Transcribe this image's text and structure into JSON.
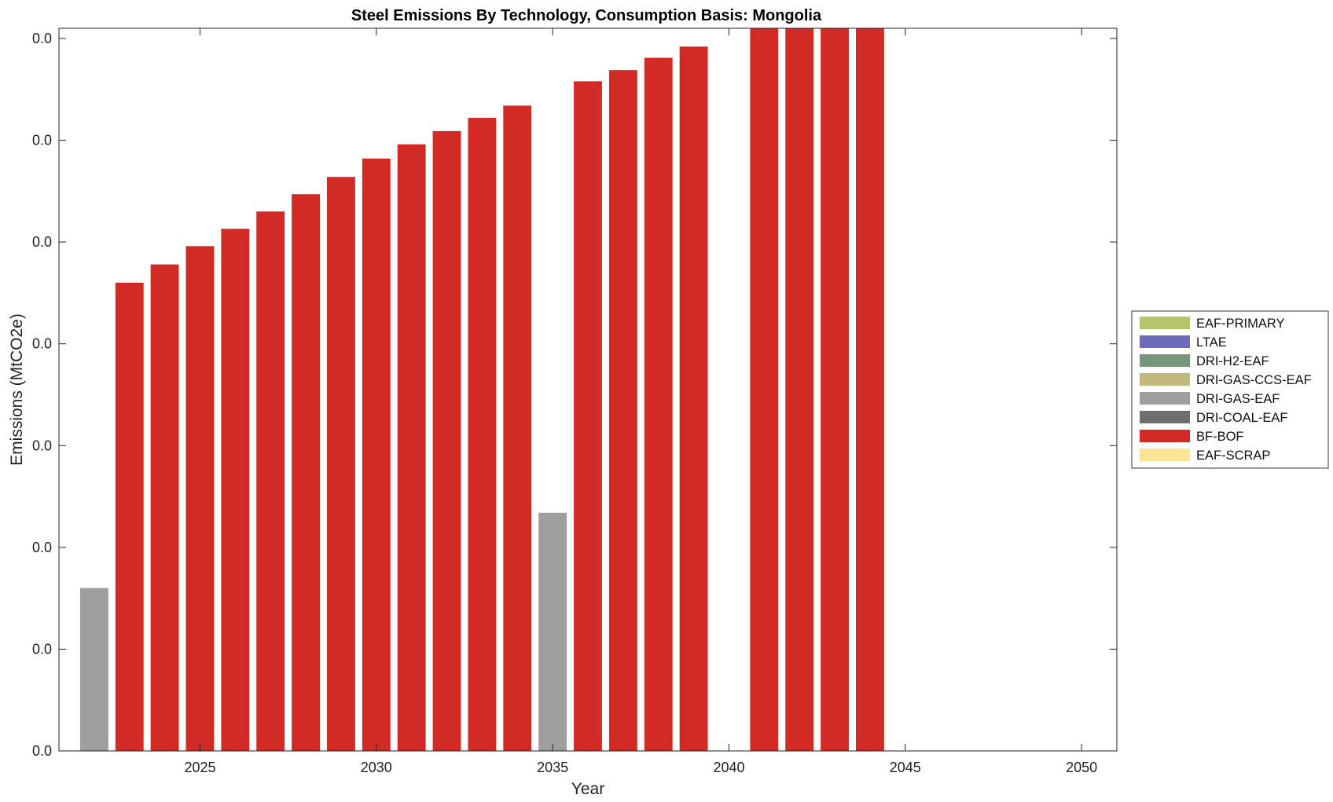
{
  "chart_data": {
    "type": "bar",
    "stacked": true,
    "title": "Steel Emissions By Technology, Consumption Basis: Mongolia",
    "xlabel": "Year",
    "ylabel": "Emissions (MtCO2e)",
    "xlim": [
      2021,
      2051
    ],
    "ylim": [
      0,
      0.0071
    ],
    "x_ticks": [
      2025,
      2030,
      2035,
      2040,
      2045,
      2050
    ],
    "y_ticks": [
      0,
      0.001,
      0.002,
      0.003,
      0.004,
      0.005,
      0.006,
      0.007
    ],
    "y_tick_labels": [
      "0.0",
      "0.0",
      "0.0",
      "0.0",
      "0.0",
      "0.0",
      "0.0",
      "0.0"
    ],
    "grid": false,
    "legend_position": "right",
    "legend": [
      {
        "name": "EAF-PRIMARY",
        "color": "#b8c46a"
      },
      {
        "name": "LTAE",
        "color": "#6e6bb8"
      },
      {
        "name": "DRI-H2-EAF",
        "color": "#76977a"
      },
      {
        "name": "DRI-GAS-CCS-EAF",
        "color": "#c3b97b"
      },
      {
        "name": "DRI-GAS-EAF",
        "color": "#9e9e9c"
      },
      {
        "name": "DRI-COAL-EAF",
        "color": "#6e6e6e"
      },
      {
        "name": "BF-BOF",
        "color": "#d22b26"
      },
      {
        "name": "EAF-SCRAP",
        "color": "#fce496"
      }
    ],
    "x": [
      2022,
      2023,
      2024,
      2025,
      2026,
      2027,
      2028,
      2029,
      2030,
      2031,
      2032,
      2033,
      2034,
      2035,
      2036,
      2037,
      2038,
      2039,
      2041,
      2042,
      2043,
      2044
    ],
    "series": [
      {
        "name": "DRI-GAS-EAF",
        "values": [
          0.0016,
          0,
          0,
          0,
          0,
          0,
          0,
          0,
          0,
          0,
          0,
          0,
          0,
          0.00234,
          0,
          0,
          0,
          0,
          0,
          0,
          0,
          0
        ]
      },
      {
        "name": "BF-BOF",
        "values": [
          0,
          0.0046,
          0.00478,
          0.00496,
          0.00513,
          0.0053,
          0.00547,
          0.00564,
          0.00582,
          0.00596,
          0.00609,
          0.00622,
          0.00634,
          0,
          0.00658,
          0.00669,
          0.00681,
          0.00692,
          0.0071,
          0.00717,
          0.00723,
          0.0073
        ]
      }
    ]
  }
}
